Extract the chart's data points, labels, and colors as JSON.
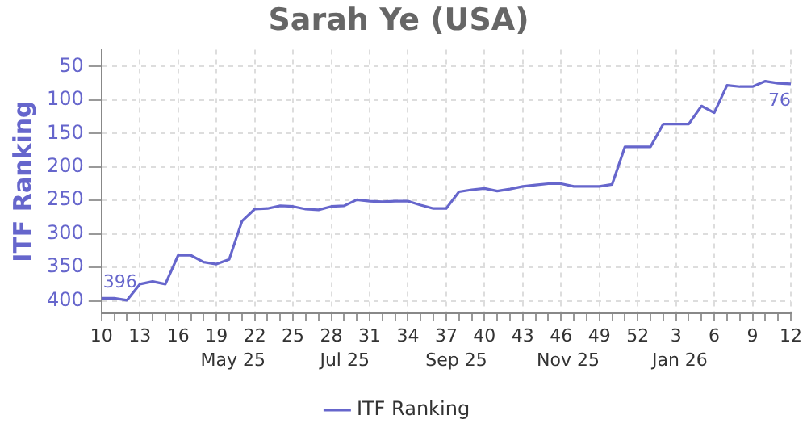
{
  "chart_data": {
    "type": "line",
    "title": "Sarah Ye (USA)",
    "ylabel": "ITF Ranking",
    "categories": [
      "10",
      null,
      null,
      "13",
      null,
      null,
      "16",
      null,
      null,
      "19",
      null,
      null,
      "22",
      null,
      null,
      "25",
      null,
      null,
      "28",
      null,
      null,
      "31",
      null,
      null,
      "34",
      null,
      null,
      "37",
      null,
      null,
      "40",
      null,
      null,
      "43",
      null,
      null,
      "46",
      null,
      null,
      "49",
      null,
      null,
      "52",
      null,
      null,
      "3",
      null,
      null,
      "6",
      null,
      null,
      "9",
      null,
      null,
      "12"
    ],
    "series": [
      {
        "name": "ITF Ranking",
        "color": "#6666cc",
        "values": [
          396,
          396,
          399,
          375,
          371,
          375,
          332,
          332,
          342,
          345,
          338,
          281,
          263,
          262,
          258,
          259,
          263,
          264,
          259,
          258,
          249,
          251,
          252,
          251,
          251,
          257,
          262,
          262,
          237,
          234,
          232,
          236,
          233,
          229,
          227,
          225,
          225,
          229,
          229,
          229,
          226,
          170,
          170,
          170,
          136,
          136,
          136,
          109,
          119,
          78,
          80,
          80,
          72,
          75,
          76
        ],
        "value_labels": [
          "396",
          null,
          null,
          null,
          null,
          null,
          null,
          null,
          null,
          null,
          null,
          null,
          null,
          null,
          null,
          null,
          null,
          null,
          null,
          null,
          null,
          null,
          null,
          null,
          null,
          null,
          null,
          null,
          null,
          null,
          null,
          null,
          null,
          null,
          null,
          null,
          null,
          null,
          null,
          null,
          null,
          null,
          null,
          null,
          null,
          null,
          null,
          null,
          null,
          null,
          null,
          null,
          null,
          null,
          "76"
        ]
      }
    ],
    "ylim": [
      418,
      25
    ],
    "yticks": [
      50,
      100,
      150,
      200,
      250,
      300,
      350,
      400
    ],
    "grid": true,
    "legend": "bottom",
    "marker": "none",
    "line_style": "solid",
    "annotations": [
      "May 25",
      "Jul 25",
      "Sep 25",
      "Nov 25",
      "Jan 26"
    ]
  }
}
